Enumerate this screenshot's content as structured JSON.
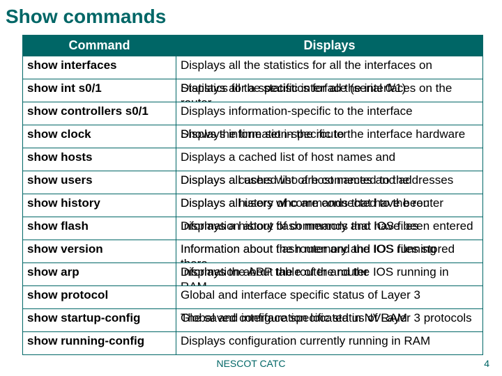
{
  "title": "Show commands",
  "headers": {
    "command": "Command",
    "displays": "Displays"
  },
  "rows": [
    {
      "cmd": "show interfaces",
      "desc_full": "Displays all the statistics for all the interfaces on the router",
      "desc_over": "Displays all the statistics for all the interfaces on"
    },
    {
      "cmd": "show int s0/1",
      "desc_full": "Statistics for a specific interface (serial 0/1)",
      "desc_over": "Statistics for a specific interface (serial 0/1)"
    },
    {
      "cmd": "show controllers s0/1",
      "desc_full": "Displays information-specific to the interface hardware",
      "desc_over": "Displays information-specific to the interface"
    },
    {
      "cmd": "show clock",
      "desc_full": "Shows the time set in the router",
      "desc_over": "Shows the time set in the router"
    },
    {
      "cmd": "show hosts",
      "desc_full": "Displays a cached list of host names and addresses",
      "desc_over": "Displays a cached list of host names and"
    },
    {
      "cmd": "show users",
      "desc_full": "Displays all users who are connected to the router",
      "desc_over": "Displays all users who are connected to the"
    },
    {
      "cmd": "show history",
      "desc_full": "Displays a history of commands that have been entered",
      "desc_over": "Displays a history of commands that have been"
    },
    {
      "cmd": "show flash",
      "desc_full": "Information about flash memory and  IOS files stored there",
      "desc_over": "Information about flash memory and  IOS files"
    },
    {
      "cmd": "show version",
      "desc_full": "Information about the router and the IOS running in RAM",
      "desc_over": "Information about the router and the IOS running"
    },
    {
      "cmd": "show arp",
      "desc_full": "Displays the ARP table of the router",
      "desc_over": "Displays the ARP table of the router"
    },
    {
      "cmd": "show protocol",
      "desc_full": "Global and interface specific status of Layer 3 protocols",
      "desc_over": "Global and interface specific status of Layer 3"
    },
    {
      "cmd": "show startup-config",
      "desc_full": "The saved configuration located in NVRAM",
      "desc_over": "The saved configuration located in NVRAM"
    },
    {
      "cmd": "show running-config",
      "desc_full": "Displays configuration currently running in RAM",
      "desc_over": "Displays configuration currently running in RAM"
    }
  ],
  "footer": "NESCOT CATC",
  "page": "4",
  "colors": {
    "accent": "#006666",
    "background": "#ffffff",
    "text": "#000000"
  }
}
